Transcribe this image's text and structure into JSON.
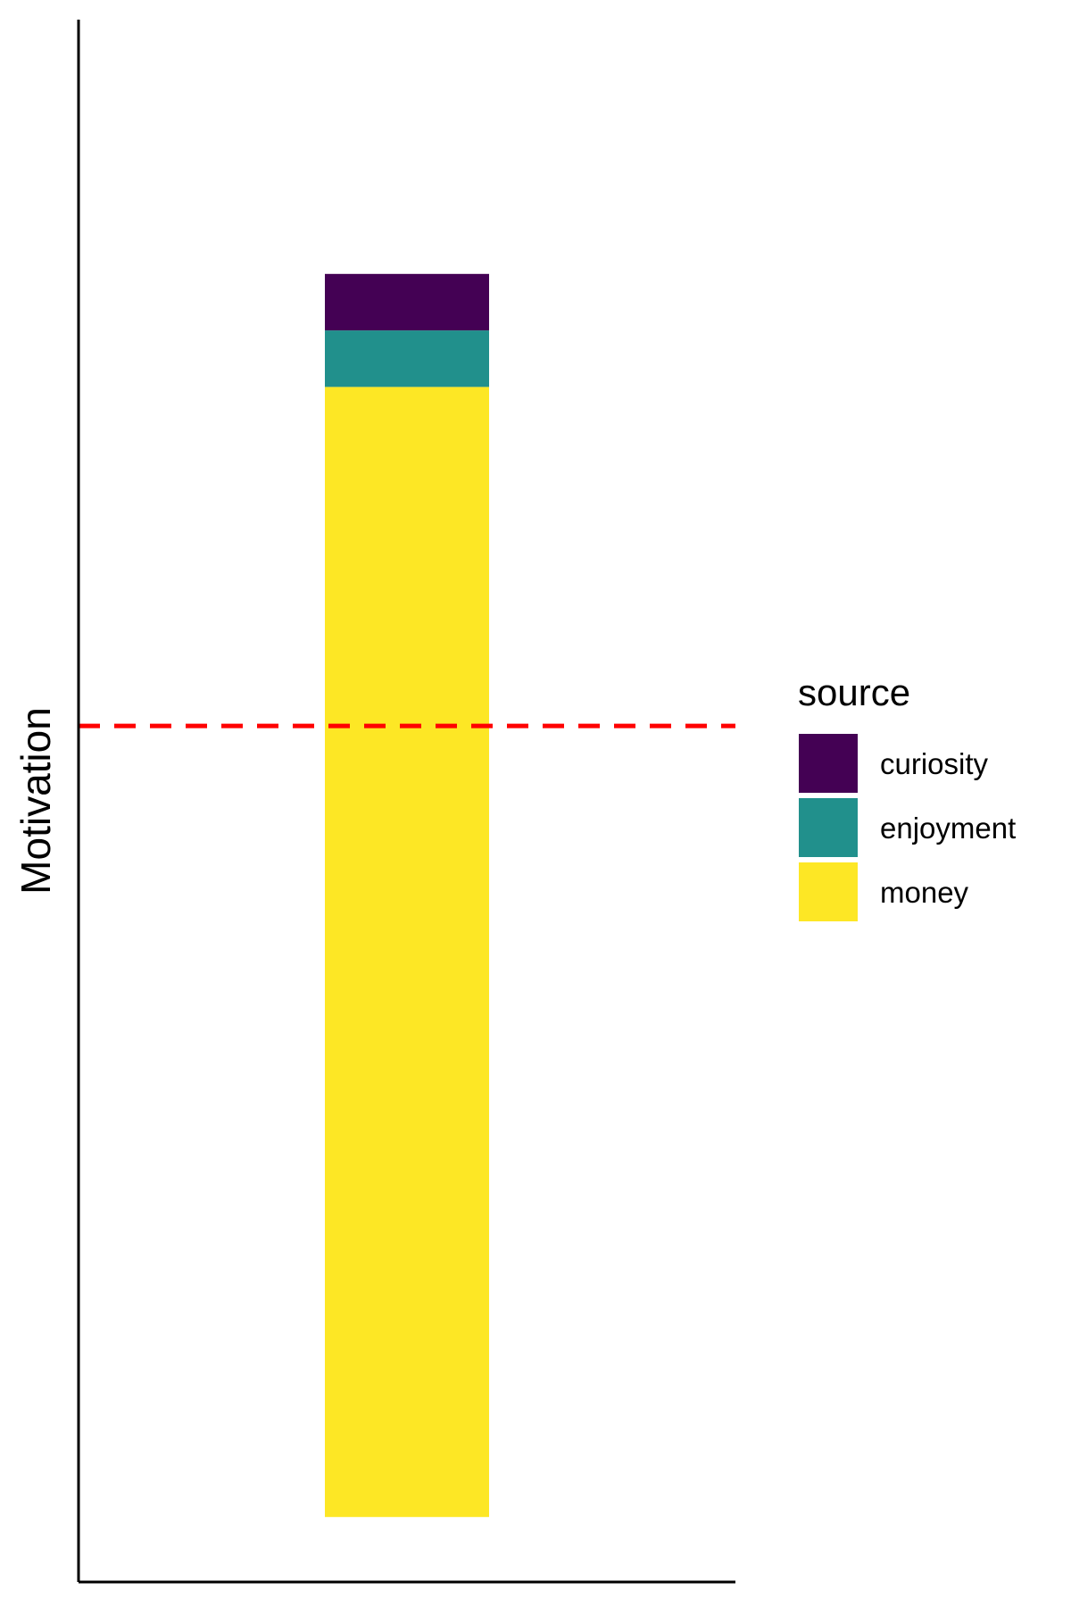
{
  "chart_data": {
    "type": "bar",
    "stacked": true,
    "categories": [
      ""
    ],
    "series": [
      {
        "name": "money",
        "values": [
          20
        ],
        "color": "#FDE725"
      },
      {
        "name": "enjoyment",
        "values": [
          1
        ],
        "color": "#21908C"
      },
      {
        "name": "curiosity",
        "values": [
          1
        ],
        "color": "#440154"
      }
    ],
    "title": "",
    "xlabel": "",
    "ylabel": "Motivation",
    "ylim": [
      -1.15,
      26.5
    ],
    "reference_line": {
      "y": 14,
      "color": "#FF0000",
      "style": "dashed"
    },
    "grid": false,
    "legend": {
      "title": "source",
      "position": "right",
      "entries": [
        {
          "label": "curiosity",
          "color": "#440154"
        },
        {
          "label": "enjoyment",
          "color": "#21908C"
        },
        {
          "label": "money",
          "color": "#FDE725"
        }
      ]
    }
  }
}
